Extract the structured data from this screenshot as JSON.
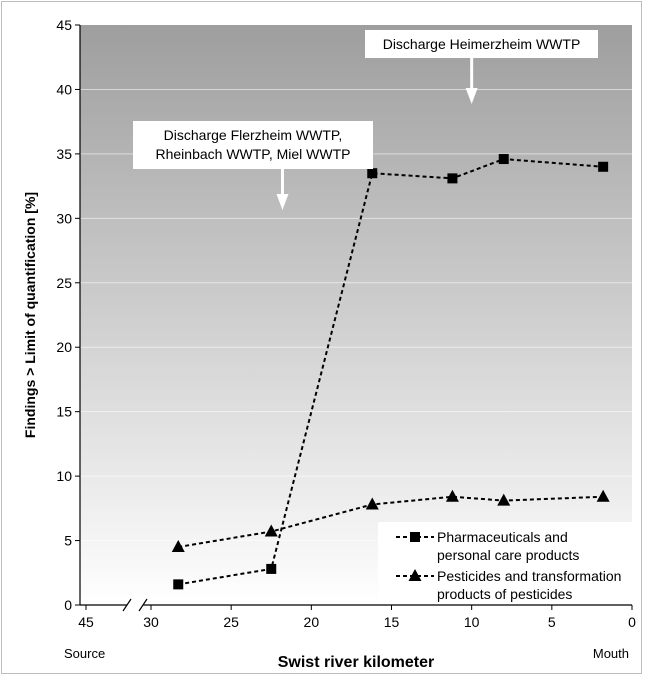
{
  "chart_data": {
    "type": "line",
    "title": "",
    "xlabel": "Swist river kilometer",
    "ylabel": "Findings > Limit of quantification [%]",
    "xlim": [
      45,
      0
    ],
    "ylim": [
      0,
      45
    ],
    "x_reversed": true,
    "axis_break_between": [
      45,
      30
    ],
    "x_ticks": [
      45,
      30,
      25,
      20,
      15,
      10,
      5,
      0
    ],
    "y_ticks": [
      0,
      5,
      10,
      15,
      20,
      25,
      30,
      35,
      40,
      45
    ],
    "x_end_labels": {
      "left": "Source",
      "right": "Mouth"
    },
    "background": "vertical gradient grey to white",
    "grid": "horizontal",
    "legend_position": "bottom-right",
    "series": [
      {
        "name": "Pharmaceuticals and personal care products",
        "legend_lines": [
          "Pharmaceuticals and",
          "personal care products"
        ],
        "marker": "square",
        "line_style": "dashed",
        "color": "#000000",
        "points": [
          {
            "x": 28.3,
            "y": 1.6
          },
          {
            "x": 22.5,
            "y": 2.8
          },
          {
            "x": 16.2,
            "y": 33.5
          },
          {
            "x": 11.2,
            "y": 33.1
          },
          {
            "x": 8.0,
            "y": 34.6
          },
          {
            "x": 1.8,
            "y": 34.0
          }
        ]
      },
      {
        "name": "Pesticides and transformation products of pesticides",
        "legend_lines": [
          "Pesticides and transformation",
          "products of pesticides"
        ],
        "marker": "triangle",
        "line_style": "dashed",
        "color": "#000000",
        "points": [
          {
            "x": 28.3,
            "y": 4.5
          },
          {
            "x": 22.5,
            "y": 5.7
          },
          {
            "x": 16.2,
            "y": 7.8
          },
          {
            "x": 11.2,
            "y": 8.4
          },
          {
            "x": 8.0,
            "y": 8.1
          },
          {
            "x": 1.8,
            "y": 8.4
          }
        ]
      }
    ],
    "annotations": [
      {
        "id": "flerzheim",
        "lines": [
          "Discharge Flerzheim WWTP,",
          "Rheinbach WWTP, Miel WWTP"
        ],
        "arrow_x": 21.8
      },
      {
        "id": "heimerzheim",
        "lines": [
          "Discharge Heimerzheim WWTP"
        ],
        "arrow_x": 10.0
      }
    ]
  }
}
